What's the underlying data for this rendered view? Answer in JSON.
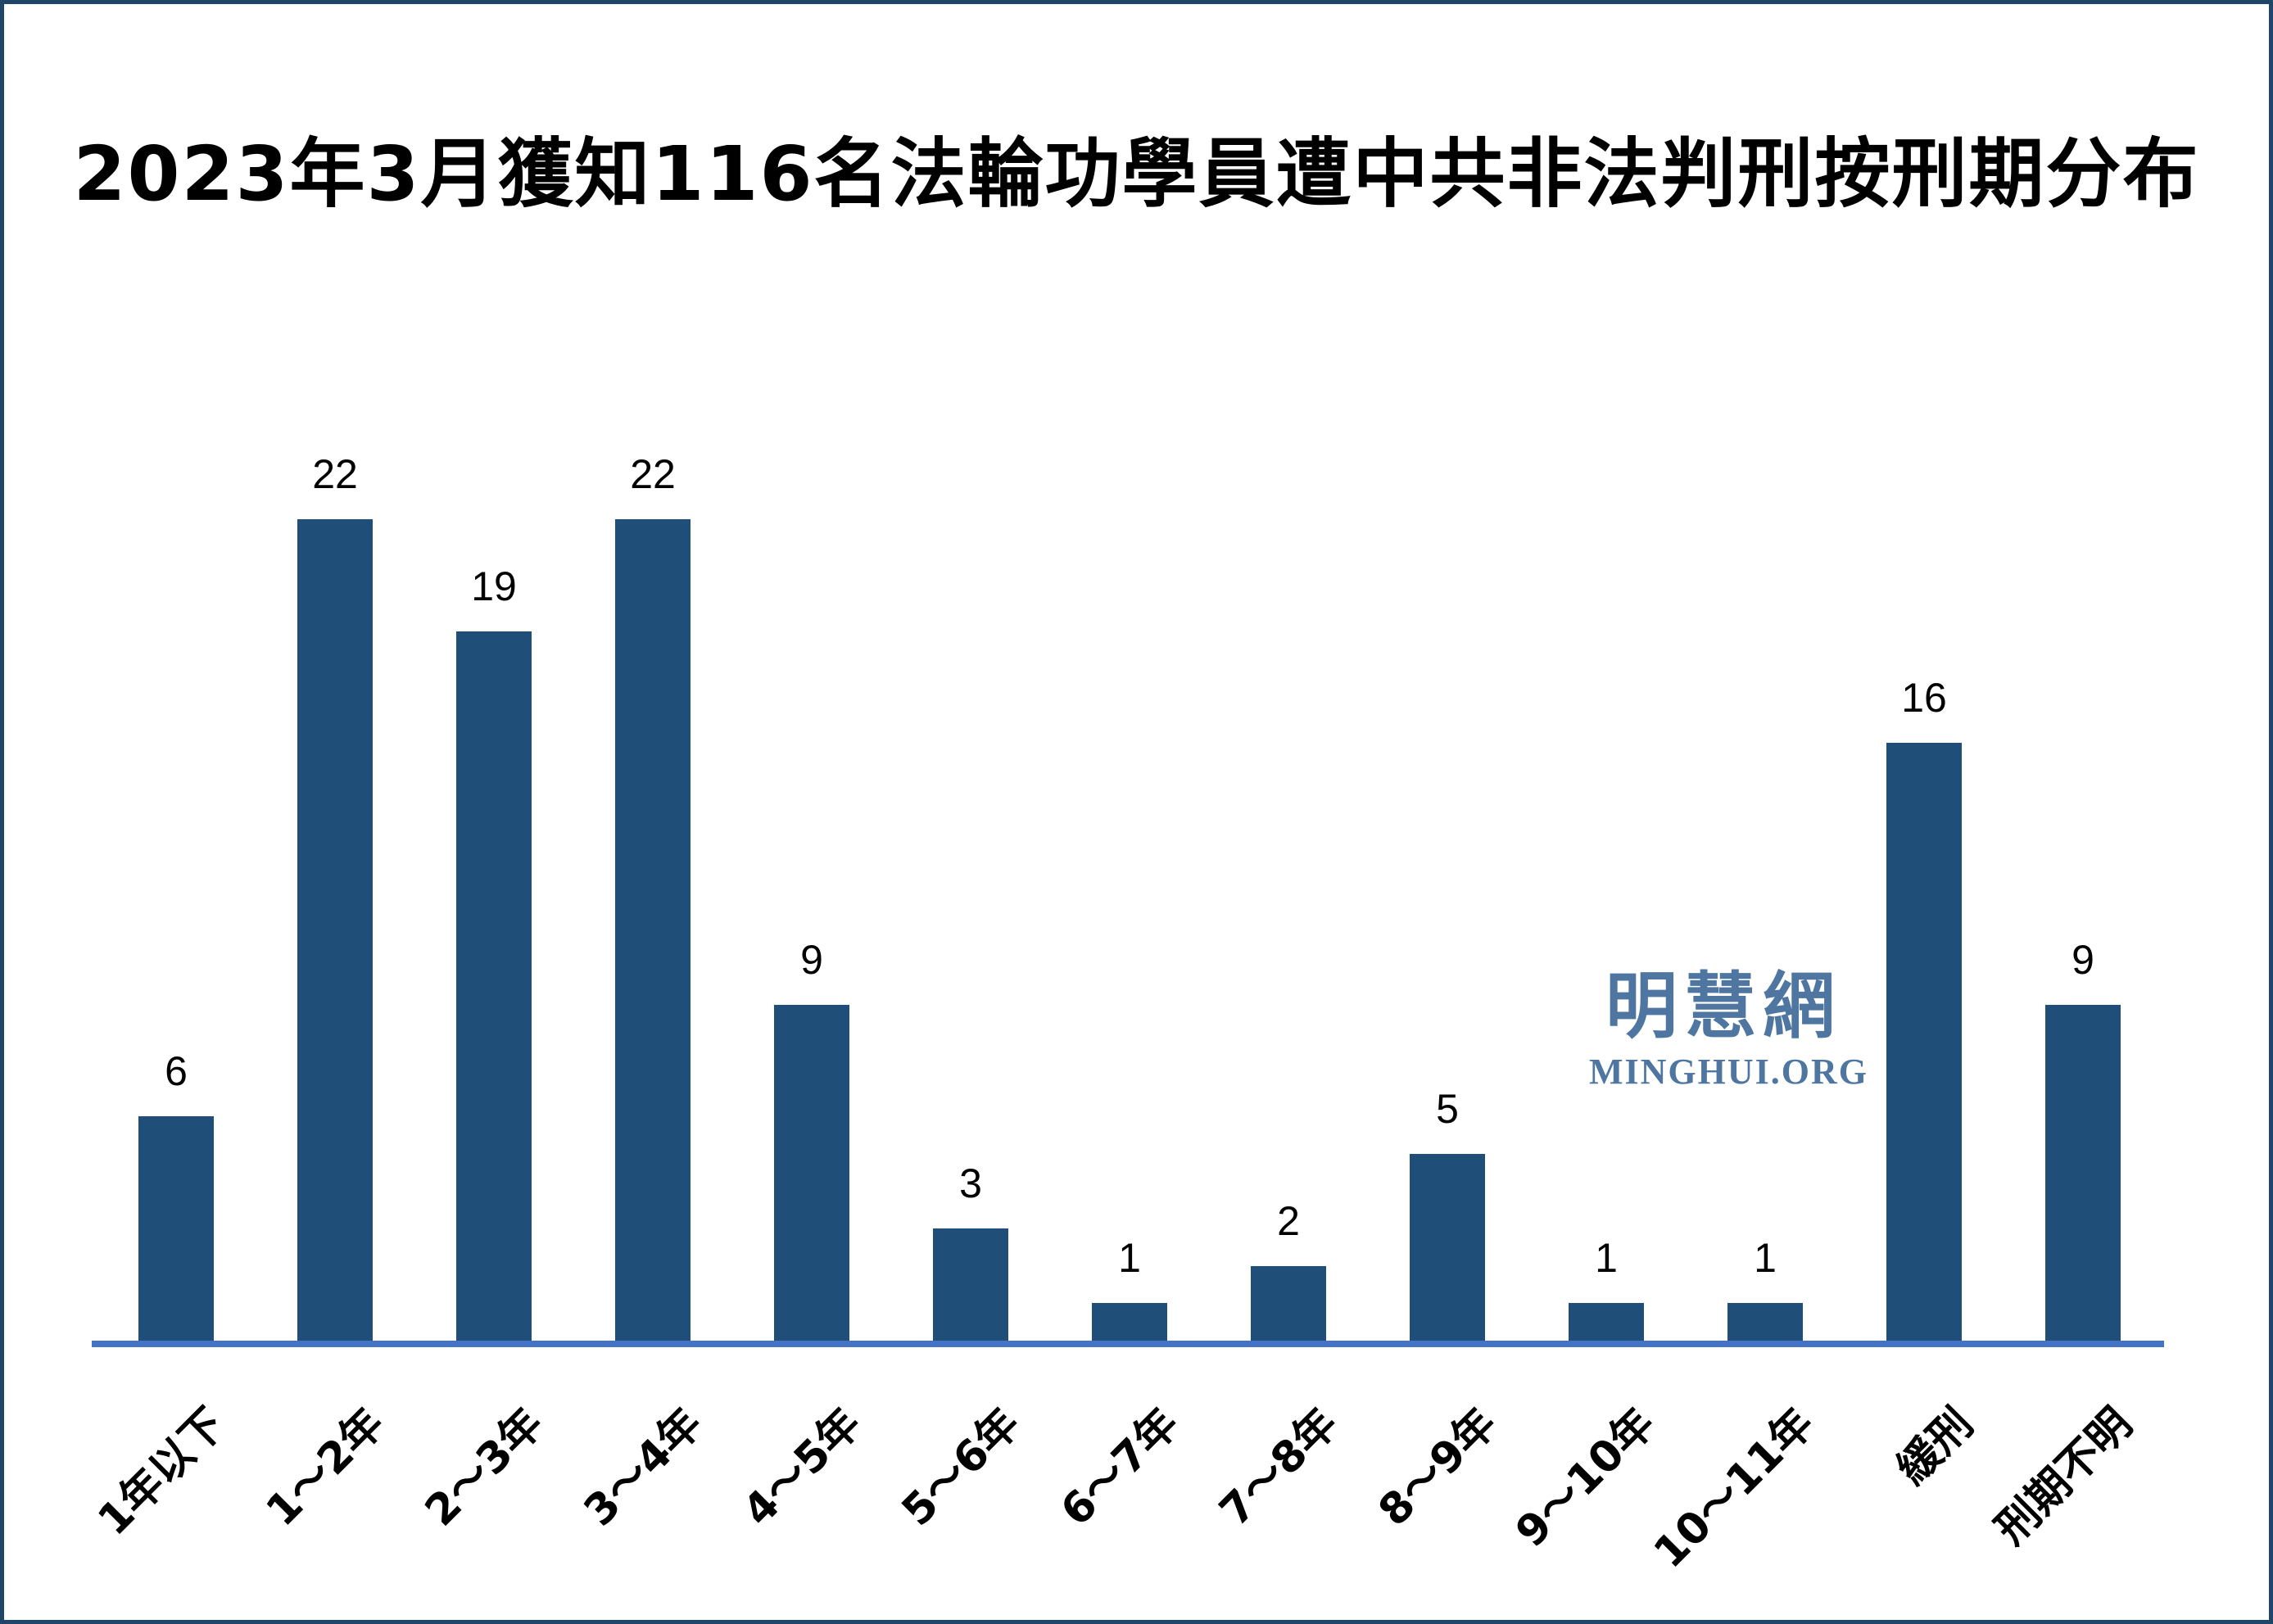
{
  "frame": {
    "border_color": "#1F4568"
  },
  "chart_data": {
    "type": "bar",
    "title": "2023年3月獲知116名法輪功學員遭中共非法判刑按刑期分布",
    "categories": [
      "1年以下",
      "1～2年",
      "2～3年",
      "3～4年",
      "4～5年",
      "5～6年",
      "6～7年",
      "7～8年",
      "8～9年",
      "9～10年",
      "10～11年",
      "緩刑",
      "刑期不明"
    ],
    "values": [
      6,
      22,
      19,
      22,
      9,
      3,
      1,
      2,
      5,
      1,
      1,
      16,
      9
    ],
    "total": 116,
    "xlabel": "",
    "ylabel": "",
    "ylim": [
      0,
      24
    ],
    "grid": false,
    "legend": false,
    "value_labels_shown": true,
    "bar_color": "#1F4E79",
    "axis_color": "#4472C4",
    "text_color": "#000000"
  },
  "watermark": {
    "cjk": "明慧網",
    "latin": "MINGHUI.ORG",
    "color": "#4E76A0"
  }
}
